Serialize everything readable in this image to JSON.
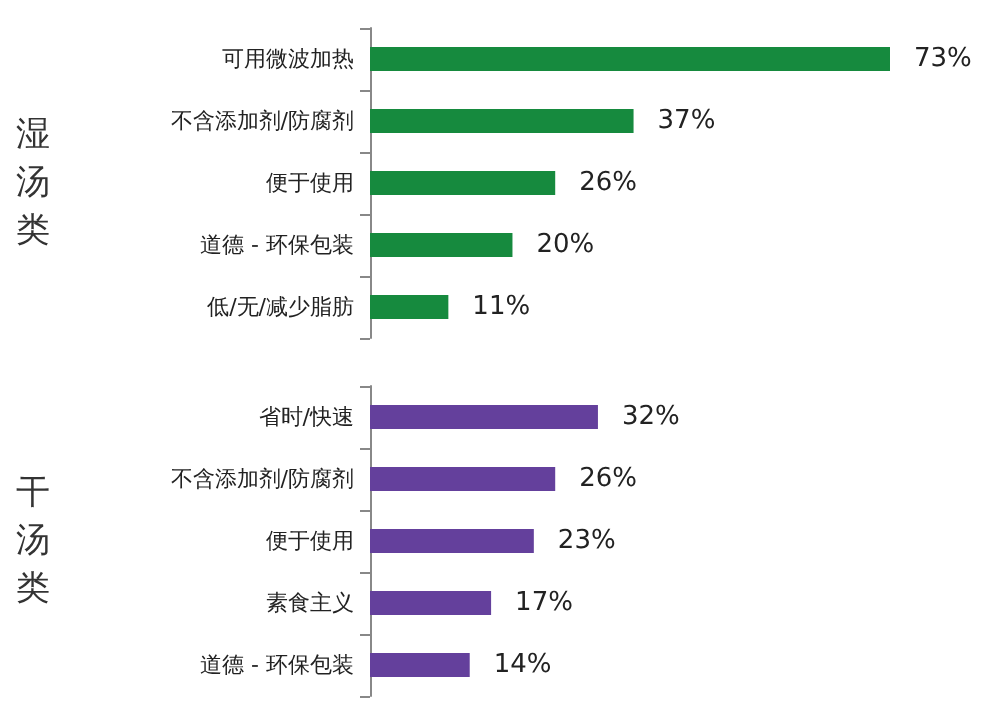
{
  "chart_data": [
    {
      "type": "bar",
      "orientation": "horizontal",
      "ylabel": "湿汤类",
      "categories": [
        "可用微波加热",
        "不含添加剂/防腐剂",
        "便于使用",
        "道德 - 环保包装",
        "低/无/减少脂肪"
      ],
      "series": [
        {
          "color": "#168a3e",
          "values": [
            73,
            37,
            26,
            20,
            11
          ],
          "value_labels": [
            "73%",
            "37%",
            "26%",
            "20%",
            "11%"
          ]
        }
      ]
    },
    {
      "type": "bar",
      "orientation": "horizontal",
      "ylabel": "干汤类",
      "categories": [
        "省时/快速",
        "不含添加剂/防腐剂",
        "便于使用",
        "素食主义",
        "道德 - 环保包装"
      ],
      "series": [
        {
          "color": "#64409c",
          "values": [
            32,
            26,
            23,
            17,
            14
          ],
          "value_labels": [
            "32%",
            "26%",
            "23%",
            "17%",
            "14%"
          ]
        }
      ]
    }
  ]
}
